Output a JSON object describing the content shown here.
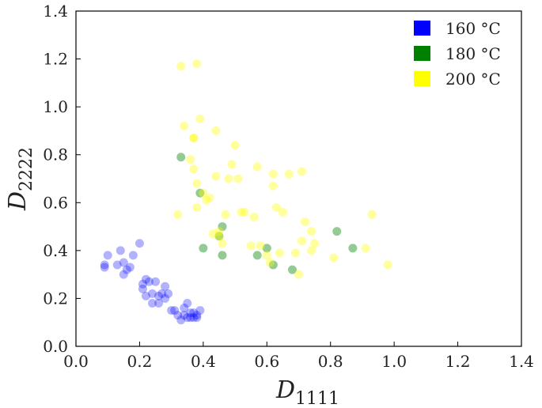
{
  "chart_data": {
    "type": "scatter",
    "xlabel": "D",
    "xlabel_sub": "1111",
    "ylabel": "D",
    "ylabel_sub": "2222",
    "xlim": [
      0.0,
      1.4
    ],
    "ylim": [
      0.0,
      1.4
    ],
    "xticks": [
      "0.0",
      "0.2",
      "0.4",
      "0.6",
      "0.8",
      "1.0",
      "1.2",
      "1.4"
    ],
    "yticks": [
      "0.0",
      "0.2",
      "0.4",
      "0.6",
      "0.8",
      "1.0",
      "1.2",
      "1.4"
    ],
    "grid": false,
    "legend_position": "top-right",
    "series": [
      {
        "name": "160 °C",
        "color": "#0000ff",
        "x": [
          0.09,
          0.09,
          0.1,
          0.13,
          0.14,
          0.15,
          0.15,
          0.16,
          0.17,
          0.18,
          0.2,
          0.21,
          0.21,
          0.22,
          0.22,
          0.23,
          0.24,
          0.24,
          0.25,
          0.26,
          0.26,
          0.27,
          0.28,
          0.28,
          0.29,
          0.3,
          0.31,
          0.32,
          0.33,
          0.34,
          0.34,
          0.35,
          0.35,
          0.36,
          0.36,
          0.37,
          0.37,
          0.38,
          0.38,
          0.39
        ],
        "y": [
          0.34,
          0.33,
          0.38,
          0.34,
          0.4,
          0.3,
          0.35,
          0.32,
          0.33,
          0.38,
          0.43,
          0.26,
          0.24,
          0.28,
          0.21,
          0.27,
          0.22,
          0.18,
          0.27,
          0.21,
          0.18,
          0.22,
          0.25,
          0.2,
          0.22,
          0.15,
          0.15,
          0.13,
          0.11,
          0.16,
          0.13,
          0.12,
          0.18,
          0.14,
          0.12,
          0.12,
          0.14,
          0.13,
          0.12,
          0.15
        ]
      },
      {
        "name": "180 °C",
        "color": "#008000",
        "x": [
          0.33,
          0.39,
          0.4,
          0.45,
          0.46,
          0.46,
          0.57,
          0.6,
          0.62,
          0.68,
          0.82,
          0.87
        ],
        "y": [
          0.79,
          0.64,
          0.41,
          0.46,
          0.5,
          0.38,
          0.38,
          0.41,
          0.34,
          0.32,
          0.48,
          0.41
        ]
      },
      {
        "name": "200 °C",
        "color": "#ffff00",
        "x": [
          0.32,
          0.33,
          0.34,
          0.36,
          0.37,
          0.37,
          0.37,
          0.38,
          0.38,
          0.38,
          0.39,
          0.4,
          0.41,
          0.42,
          0.43,
          0.44,
          0.44,
          0.45,
          0.45,
          0.46,
          0.47,
          0.48,
          0.49,
          0.5,
          0.51,
          0.52,
          0.53,
          0.55,
          0.56,
          0.57,
          0.58,
          0.6,
          0.61,
          0.62,
          0.62,
          0.63,
          0.64,
          0.65,
          0.67,
          0.69,
          0.7,
          0.71,
          0.71,
          0.72,
          0.74,
          0.74,
          0.75,
          0.81,
          0.91,
          0.93,
          0.98
        ],
        "y": [
          0.55,
          1.17,
          0.92,
          0.78,
          0.74,
          0.87,
          0.87,
          1.18,
          0.68,
          0.58,
          0.95,
          0.64,
          0.61,
          0.62,
          0.47,
          0.9,
          0.71,
          0.48,
          0.46,
          0.43,
          0.55,
          0.7,
          0.76,
          0.84,
          0.7,
          0.56,
          0.56,
          0.42,
          0.54,
          0.75,
          0.42,
          0.38,
          0.35,
          0.72,
          0.67,
          0.58,
          0.39,
          0.56,
          0.72,
          0.39,
          0.3,
          0.44,
          0.73,
          0.52,
          0.48,
          0.4,
          0.43,
          0.37,
          0.41,
          0.55,
          0.34
        ]
      }
    ]
  }
}
